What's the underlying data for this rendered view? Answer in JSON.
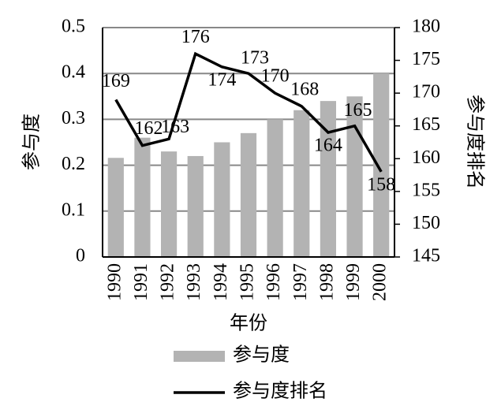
{
  "chart_data": {
    "type": "bar",
    "x_label": "年份",
    "y_label": "参与度",
    "y2_label": "参与度排名",
    "categories": [
      "1990",
      "1991",
      "1992",
      "1993",
      "1994",
      "1995",
      "1996",
      "1997",
      "1998",
      "1999",
      "2000"
    ],
    "series": [
      {
        "name": "参与度",
        "type": "bar",
        "color": "#b3b3b3",
        "values": [
          0.216,
          0.26,
          0.23,
          0.22,
          0.25,
          0.27,
          0.3,
          0.32,
          0.34,
          0.35,
          0.4
        ]
      },
      {
        "name": "参与度排名",
        "type": "line",
        "axis": "y2",
        "color": "#000000",
        "values": [
          169,
          162,
          163,
          176,
          174,
          173,
          170,
          168,
          164,
          165,
          158
        ]
      }
    ],
    "ylim": [
      0,
      0.5
    ],
    "yticks": [
      0,
      0.1,
      0.2,
      0.3,
      0.4,
      0.5
    ],
    "y2lim": [
      145,
      180
    ],
    "y2ticks": [
      145,
      150,
      155,
      160,
      165,
      170,
      175,
      180
    ],
    "grid": true
  }
}
